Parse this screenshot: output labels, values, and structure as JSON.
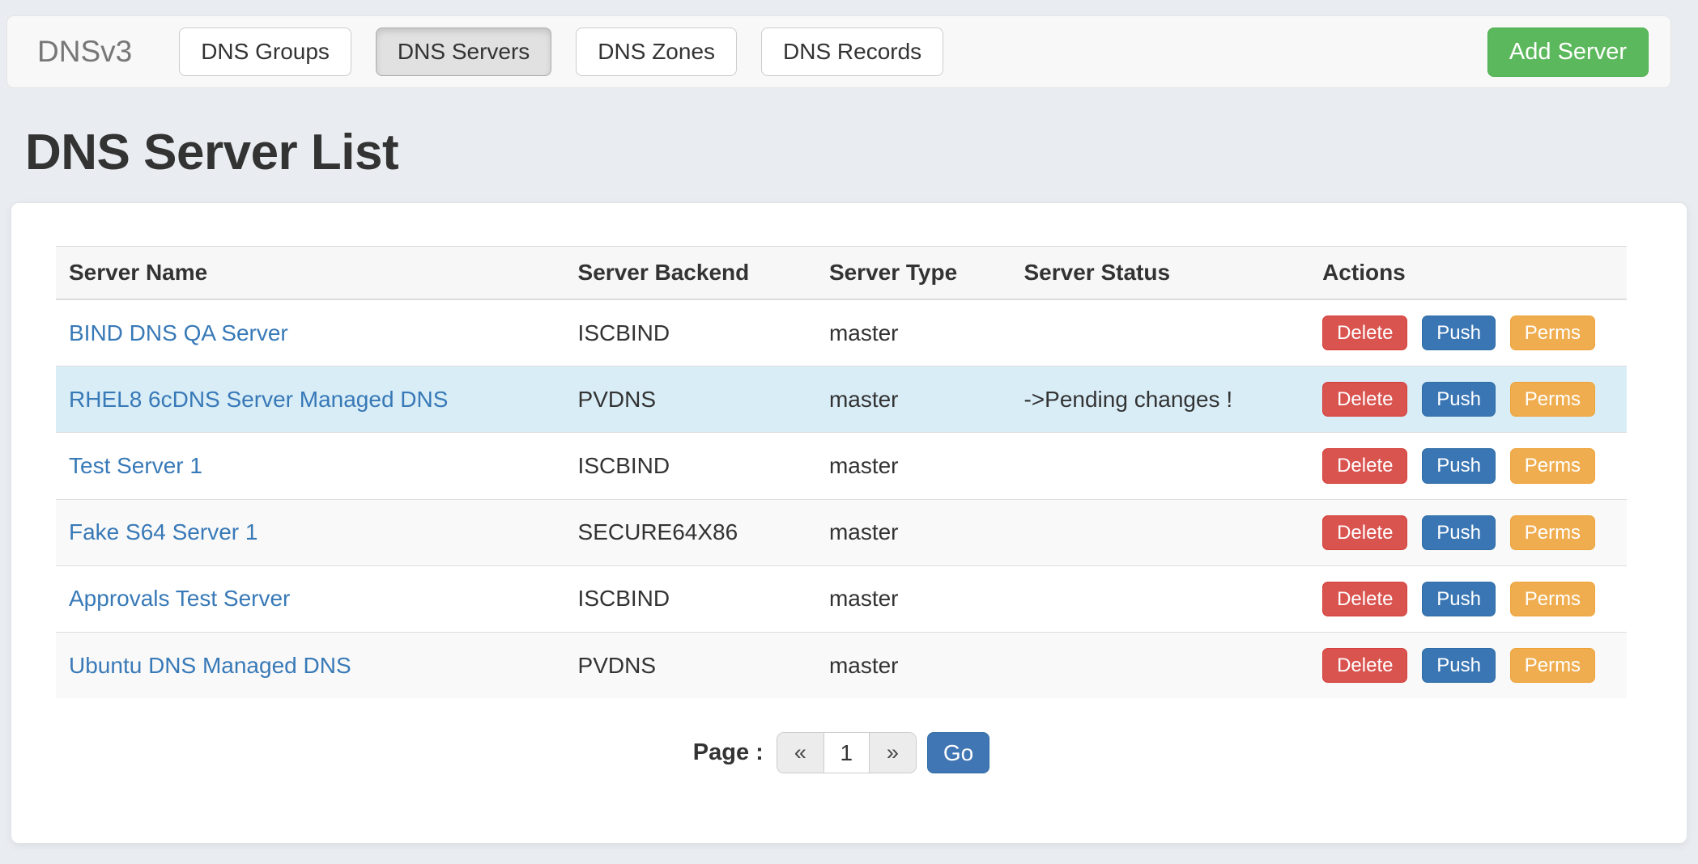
{
  "navbar": {
    "brand": "DNSv3",
    "items": [
      {
        "label": "DNS Groups",
        "active": false
      },
      {
        "label": "DNS Servers",
        "active": true
      },
      {
        "label": "DNS Zones",
        "active": false
      },
      {
        "label": "DNS Records",
        "active": false
      }
    ],
    "add_button_label": "Add Server"
  },
  "page": {
    "title": "DNS Server List"
  },
  "table": {
    "columns": [
      "Server Name",
      "Server Backend",
      "Server Type",
      "Server Status",
      "Actions"
    ],
    "action_labels": [
      "Delete",
      "Push",
      "Perms"
    ],
    "rows": [
      {
        "name": "BIND DNS QA Server",
        "backend": "ISCBIND",
        "type": "master",
        "status": "",
        "highlight": false
      },
      {
        "name": "RHEL8 6cDNS Server Managed DNS",
        "backend": "PVDNS",
        "type": "master",
        "status": "->Pending changes !",
        "highlight": true
      },
      {
        "name": "Test Server 1",
        "backend": "ISCBIND",
        "type": "master",
        "status": "",
        "highlight": false
      },
      {
        "name": "Fake S64 Server 1",
        "backend": "SECURE64X86",
        "type": "master",
        "status": "",
        "highlight": false
      },
      {
        "name": "Approvals Test Server",
        "backend": "ISCBIND",
        "type": "master",
        "status": "",
        "highlight": false
      },
      {
        "name": "Ubuntu DNS Managed DNS",
        "backend": "PVDNS",
        "type": "master",
        "status": "",
        "highlight": false
      }
    ]
  },
  "pagination": {
    "label": "Page :",
    "prev": "«",
    "page_value": "1",
    "next": "»",
    "go_label": "Go"
  },
  "colors": {
    "page_background": "#e9edf1",
    "navbar_background": "#f8f8f8",
    "brand_text": "#777777",
    "link_blue": "#3879b7",
    "success_green": "#5cb85c",
    "danger_red": "#d9534f",
    "primary_blue": "#3a76b4",
    "warning_orange": "#efad4f",
    "info_row_blue": "#d9edf7",
    "striped_row_gray": "#f9f9f9",
    "header_row_gray": "#f7f7f7"
  }
}
